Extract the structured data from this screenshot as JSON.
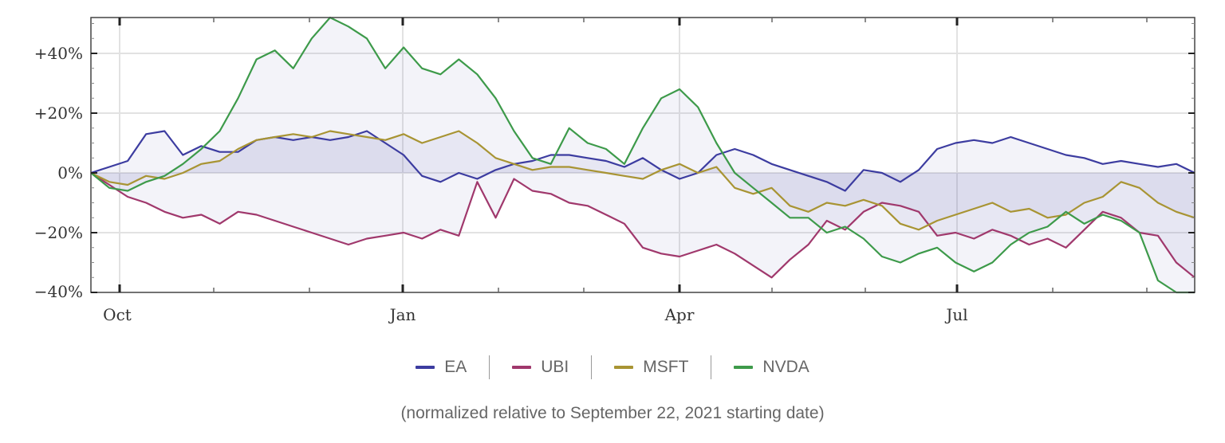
{
  "chart_data": {
    "type": "line",
    "title": "",
    "xlabel": "",
    "ylabel": "",
    "x_ticks": [
      "Oct",
      "Jan",
      "Apr",
      "Jul"
    ],
    "y_ticks": [
      "+40%",
      "+20%",
      "0%",
      "−20%",
      "−40%"
    ],
    "ylim": [
      -40,
      52
    ],
    "caption": "(normalized relative to September 22, 2021 starting date)",
    "series": [
      {
        "name": "EA",
        "color": "#3c3ca0",
        "values": [
          0,
          2,
          4,
          13,
          14,
          6,
          9,
          7,
          7,
          11,
          12,
          11,
          12,
          11,
          12,
          14,
          10,
          6,
          -1,
          -3,
          0,
          -2,
          1,
          3,
          4,
          6,
          6,
          5,
          4,
          2,
          5,
          1,
          -2,
          0,
          6,
          8,
          6,
          3,
          1,
          -1,
          -3,
          -6,
          1,
          0,
          -3,
          1,
          8,
          10,
          11,
          10,
          12,
          10,
          8,
          6,
          5,
          3,
          4,
          3,
          2,
          3,
          0
        ]
      },
      {
        "name": "UBI",
        "color": "#a0386c",
        "values": [
          0,
          -4,
          -8,
          -10,
          -13,
          -15,
          -14,
          -17,
          -13,
          -14,
          -16,
          -18,
          -20,
          -22,
          -24,
          -22,
          -21,
          -20,
          -22,
          -19,
          -21,
          -3,
          -15,
          -2,
          -6,
          -7,
          -10,
          -11,
          -14,
          -17,
          -25,
          -27,
          -28,
          -26,
          -24,
          -27,
          -31,
          -35,
          -29,
          -24,
          -16,
          -19,
          -13,
          -10,
          -11,
          -13,
          -21,
          -20,
          -22,
          -19,
          -21,
          -24,
          -22,
          -25,
          -19,
          -13,
          -15,
          -20,
          -21,
          -30,
          -35
        ]
      },
      {
        "name": "MSFT",
        "color": "#a89433",
        "values": [
          0,
          -3,
          -4,
          -1,
          -2,
          0,
          3,
          4,
          8,
          11,
          12,
          13,
          12,
          14,
          13,
          12,
          11,
          13,
          10,
          12,
          14,
          10,
          5,
          3,
          1,
          2,
          2,
          1,
          0,
          -1,
          -2,
          1,
          3,
          0,
          2,
          -5,
          -7,
          -5,
          -11,
          -13,
          -10,
          -11,
          -9,
          -11,
          -17,
          -19,
          -16,
          -14,
          -12,
          -10,
          -13,
          -12,
          -15,
          -14,
          -10,
          -8,
          -3,
          -5,
          -10,
          -13,
          -15
        ]
      },
      {
        "name": "NVDA",
        "color": "#3d9a4a",
        "values": [
          0,
          -5,
          -6,
          -3,
          -1,
          3,
          8,
          14,
          25,
          38,
          41,
          35,
          45,
          52,
          49,
          45,
          35,
          42,
          35,
          33,
          38,
          33,
          25,
          14,
          5,
          3,
          15,
          10,
          8,
          3,
          15,
          25,
          28,
          22,
          10,
          0,
          -5,
          -10,
          -15,
          -15,
          -20,
          -18,
          -22,
          -28,
          -30,
          -27,
          -25,
          -30,
          -33,
          -30,
          -24,
          -20,
          -18,
          -13,
          -17,
          -14,
          -16,
          -20,
          -36,
          -40,
          -40
        ]
      }
    ]
  }
}
